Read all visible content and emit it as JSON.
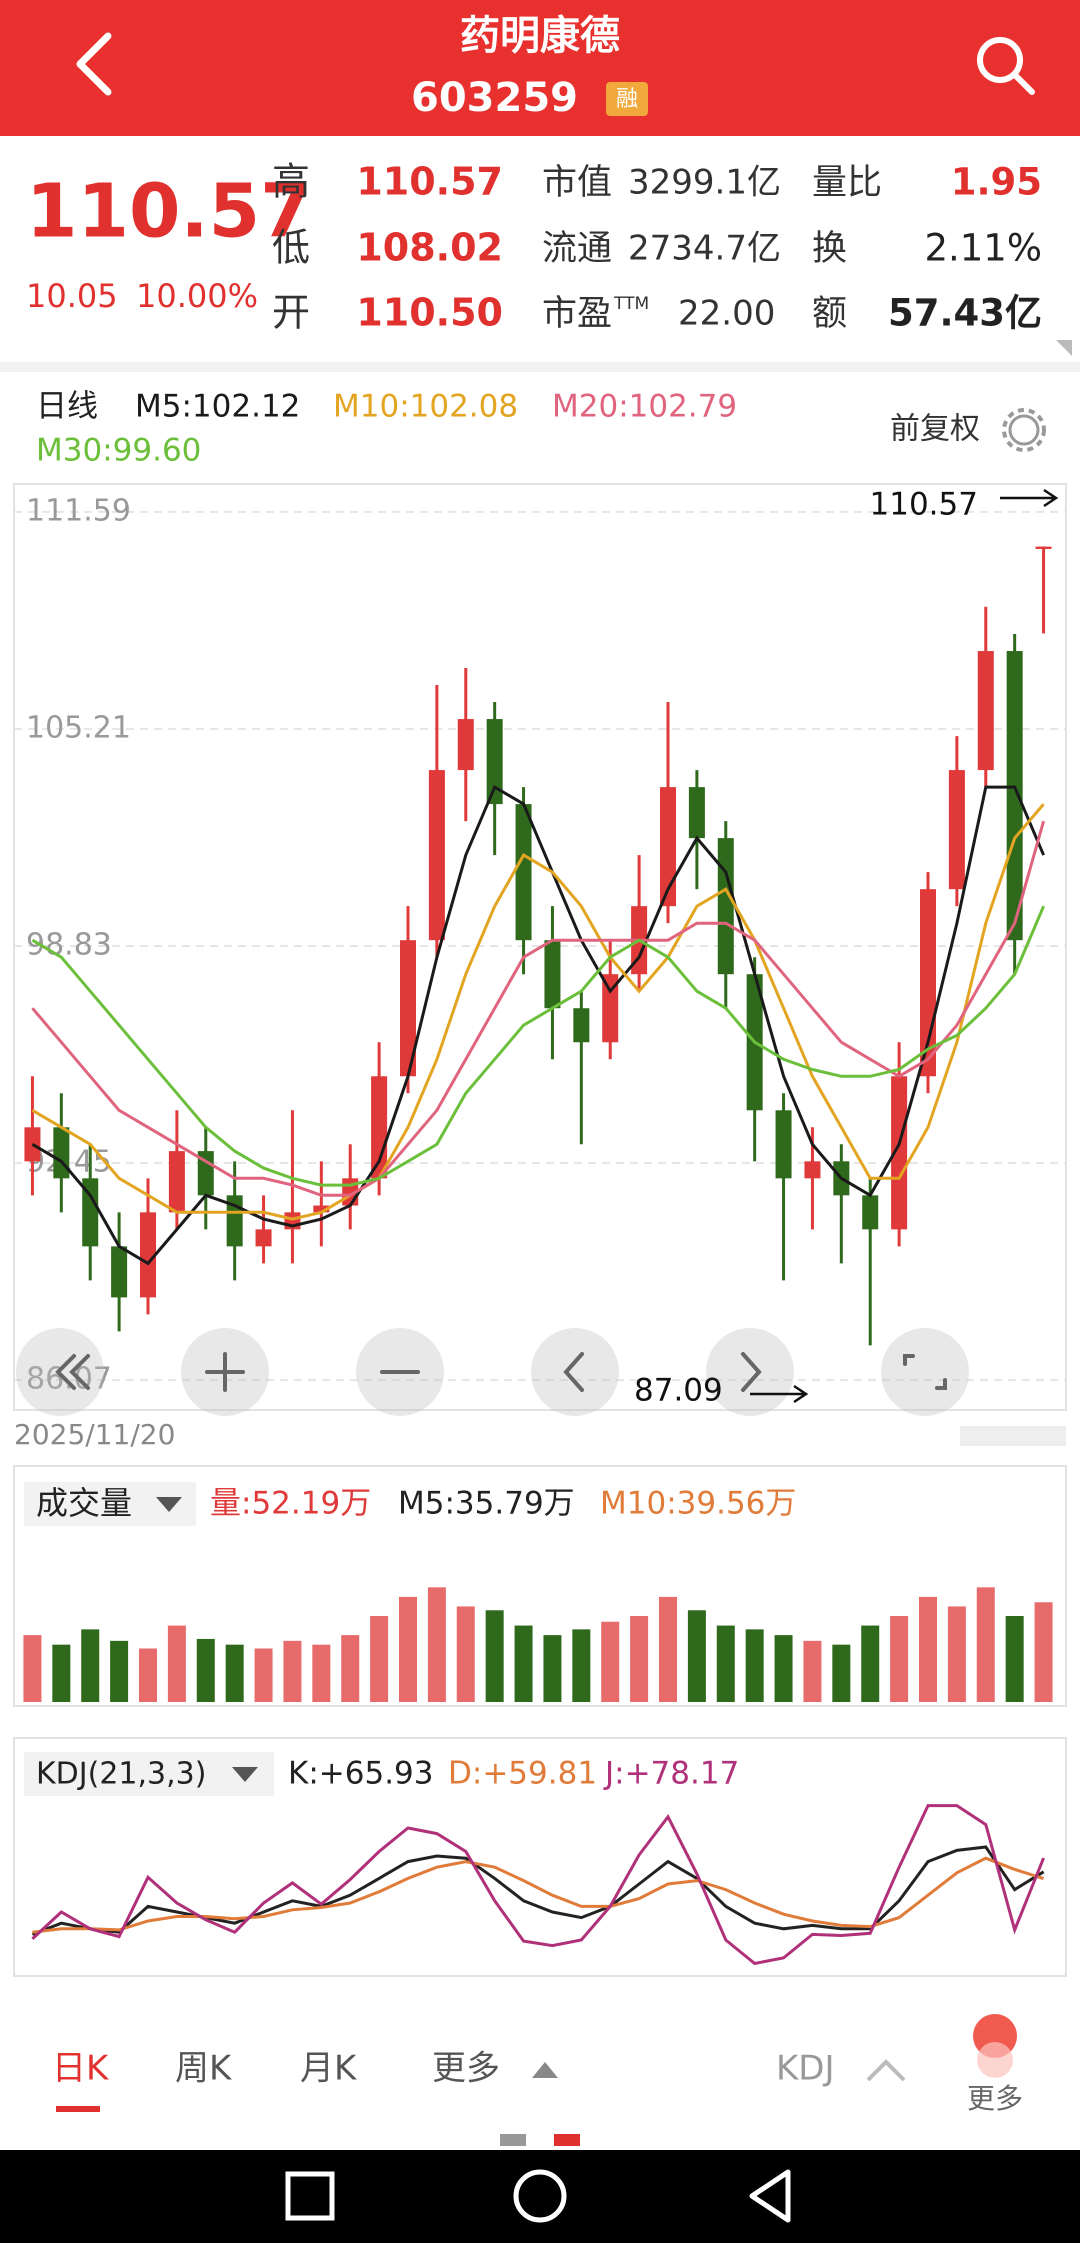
{
  "header": {
    "title": "药明康德",
    "code": "603259",
    "badge": "融"
  },
  "quote": {
    "price": "110.57",
    "change": "10.05",
    "change_pct": "10.00%",
    "high": {
      "label": "高",
      "value": "110.57"
    },
    "low": {
      "label": "低",
      "value": "108.02"
    },
    "open": {
      "label": "开",
      "value": "110.50"
    },
    "mcap": {
      "label": "市值",
      "value": "3299.1亿"
    },
    "float": {
      "label": "流通",
      "value": "2734.7亿"
    },
    "pe": {
      "label": "市盈",
      "sup": "TTM",
      "value": "22.00"
    },
    "vr": {
      "label": "量比",
      "value": "1.95"
    },
    "turn": {
      "label": "换",
      "value": "2.11%"
    },
    "amt": {
      "label": "额",
      "value": "57.43亿"
    }
  },
  "chart_data": [
    {
      "type": "candlestick",
      "period": "日线",
      "adjust": "前复权",
      "date": "2025/11/20",
      "ylim": [
        85.19,
        112.38
      ],
      "yticks": [
        111.59,
        105.21,
        98.83,
        92.45,
        86.07
      ],
      "grid": true,
      "annotations": [
        {
          "text": "110.57"
        },
        {
          "text": "87.09"
        }
      ],
      "ohlc": [
        [
          92.5,
          95.0,
          91.5,
          93.5
        ],
        [
          93.5,
          94.5,
          91.0,
          92.0
        ],
        [
          92.0,
          93.0,
          89.0,
          90.0
        ],
        [
          90.0,
          91.0,
          87.5,
          88.5
        ],
        [
          88.5,
          92.0,
          88.0,
          91.0
        ],
        [
          91.0,
          94.0,
          90.5,
          92.8
        ],
        [
          92.8,
          93.5,
          90.5,
          91.5
        ],
        [
          91.5,
          92.5,
          89.0,
          90.0
        ],
        [
          90.0,
          91.5,
          89.5,
          90.5
        ],
        [
          90.5,
          94.0,
          89.5,
          91.0
        ],
        [
          91.0,
          92.5,
          90.0,
          91.2
        ],
        [
          91.2,
          93.0,
          90.5,
          92.0
        ],
        [
          92.0,
          96.0,
          91.5,
          95.0
        ],
        [
          95.0,
          100.0,
          94.5,
          99.0
        ],
        [
          99.0,
          106.5,
          98.5,
          104.0
        ],
        [
          104.0,
          107.0,
          102.5,
          105.5
        ],
        [
          105.5,
          106.0,
          101.5,
          103.0
        ],
        [
          103.0,
          103.5,
          98.0,
          99.0
        ],
        [
          99.0,
          100.0,
          95.5,
          97.0
        ],
        [
          97.0,
          97.5,
          93.0,
          96.0
        ],
        [
          96.0,
          99.0,
          95.5,
          98.0
        ],
        [
          98.0,
          101.5,
          97.5,
          100.0
        ],
        [
          100.0,
          106.0,
          99.5,
          103.5
        ],
        [
          103.5,
          104.0,
          100.5,
          102.0
        ],
        [
          102.0,
          102.5,
          97.0,
          98.0
        ],
        [
          98.0,
          98.5,
          92.5,
          94.0
        ],
        [
          94.0,
          94.5,
          89.0,
          92.0
        ],
        [
          92.0,
          93.5,
          90.5,
          92.5
        ],
        [
          92.5,
          93.0,
          89.5,
          91.5
        ],
        [
          91.5,
          92.0,
          87.09,
          90.5
        ],
        [
          90.5,
          96.0,
          90.0,
          95.0
        ],
        [
          95.0,
          101.0,
          94.5,
          100.5
        ],
        [
          100.5,
          105.0,
          100.0,
          104.0
        ],
        [
          104.0,
          108.8,
          103.5,
          107.5
        ],
        [
          107.5,
          108.0,
          98.0,
          99.0
        ],
        [
          110.5,
          110.57,
          108.02,
          110.57
        ]
      ],
      "up_color": "#e0393a",
      "down_color": "#2f6a1c",
      "series": [
        {
          "name": "M5:102.12",
          "color": "#1a1a1a",
          "values": [
            93,
            92.5,
            91.5,
            90,
            89.5,
            90.5,
            91.5,
            91.2,
            90.8,
            90.6,
            90.8,
            91.2,
            92.5,
            95,
            98.5,
            101.5,
            103.5,
            103,
            101,
            99,
            97.5,
            98.5,
            100.5,
            102,
            101,
            98,
            95,
            93,
            92,
            91.5,
            93,
            96,
            99.5,
            103.5,
            103.5,
            101.5
          ]
        },
        {
          "name": "M10:102.08",
          "color": "#e3a521",
          "values": [
            94,
            93.5,
            93,
            92,
            91.5,
            91,
            91,
            91,
            91,
            90.8,
            91,
            91.5,
            92,
            93.5,
            95.5,
            98,
            100,
            101.5,
            101,
            100,
            98.5,
            97.5,
            98.5,
            100,
            100.5,
            99,
            97,
            95,
            93.5,
            92,
            92,
            93.5,
            96,
            99.5,
            102,
            103
          ]
        },
        {
          "name": "M20:102.79",
          "color": "#e0647e",
          "values": [
            97,
            96,
            95,
            94,
            93.5,
            93,
            92.5,
            92,
            92,
            91.8,
            91.5,
            91.5,
            92,
            93,
            94,
            95.5,
            97,
            98.5,
            99,
            99,
            99,
            99,
            99,
            99.5,
            99.5,
            99,
            98,
            97,
            96,
            95.5,
            95,
            95.5,
            96.5,
            98,
            99.5,
            102.5
          ]
        },
        {
          "name": "M30:99.60",
          "color": "#6cbf3a",
          "values": [
            99,
            98.5,
            97.5,
            96.5,
            95.5,
            94.5,
            93.5,
            92.8,
            92.3,
            92,
            91.8,
            91.8,
            92,
            92.5,
            93,
            94.5,
            95.5,
            96.5,
            97,
            97.5,
            98.5,
            99,
            98.5,
            97.5,
            97,
            96,
            95.5,
            95.2,
            95,
            95,
            95.2,
            95.8,
            96.2,
            97,
            98,
            100
          ]
        }
      ]
    },
    {
      "type": "bar",
      "label": "成交量",
      "ylim": [
        0,
        90
      ],
      "legend": [
        {
          "text": "量:52.19万",
          "color": "#e0393a"
        },
        {
          "text": "M5:35.79万",
          "color": "#222222"
        },
        {
          "text": "M10:39.56万",
          "color": "#e07b39"
        }
      ],
      "values": [
        35,
        30,
        38,
        32,
        28,
        40,
        33,
        30,
        28,
        32,
        30,
        35,
        45,
        55,
        60,
        50,
        48,
        40,
        35,
        38,
        42,
        45,
        55,
        48,
        40,
        38,
        35,
        32,
        30,
        40,
        45,
        55,
        50,
        60,
        45,
        52.19
      ]
    },
    {
      "type": "line",
      "label": "KDJ(21,3,3)",
      "ylim": [
        -20,
        130
      ],
      "series": [
        {
          "name": "K:+65.93",
          "color": "#222222",
          "values": [
            10,
            20,
            15,
            12,
            35,
            30,
            25,
            20,
            30,
            40,
            35,
            45,
            60,
            75,
            80,
            78,
            60,
            40,
            30,
            25,
            35,
            55,
            75,
            60,
            35,
            20,
            15,
            18,
            15,
            15,
            40,
            75,
            85,
            88,
            50,
            65.93
          ]
        },
        {
          "name": "D:+59.81",
          "color": "#e07b39",
          "values": [
            12,
            15,
            15,
            14,
            22,
            26,
            26,
            24,
            26,
            32,
            34,
            38,
            48,
            60,
            70,
            75,
            70,
            58,
            45,
            35,
            35,
            42,
            55,
            58,
            50,
            38,
            28,
            22,
            18,
            17,
            25,
            45,
            65,
            78,
            68,
            59.81
          ]
        },
        {
          "name": "J:+78.17",
          "color": "#b0307a",
          "values": [
            6,
            30,
            15,
            8,
            61,
            38,
            23,
            12,
            38,
            56,
            37,
            59,
            84,
            105,
            100,
            84,
            40,
            4,
            0,
            5,
            35,
            81,
            115,
            64,
            5,
            -16,
            -11,
            10,
            9,
            11,
            70,
            125,
            125,
            108,
            14,
            78.17
          ]
        }
      ]
    }
  ],
  "tabs": [
    "日K",
    "周K",
    "月K",
    "更多"
  ],
  "indicator": "KDJ",
  "more": "更多"
}
